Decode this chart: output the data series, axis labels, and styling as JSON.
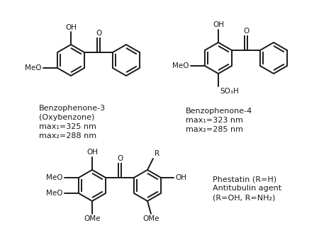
{
  "bg_color": "#ffffff",
  "fig_width": 4.74,
  "fig_height": 3.56,
  "dpi": 100,
  "label1_lines": [
    "Benzophenone-3",
    "(Oxybenzone)",
    "max₁=325 nm",
    "max₂=288 nm"
  ],
  "label2_lines": [
    "Benzophenone-4",
    "max₁=323 nm",
    "max₂=285 nm"
  ],
  "label3_lines": [
    "Phestatin (R=H)",
    "Antitubulin agent",
    "(R=OH, R=NH₂)"
  ],
  "text_color": "#1a1a1a",
  "line_color": "#1a1a1a",
  "lw": 1.4,
  "r": 22
}
